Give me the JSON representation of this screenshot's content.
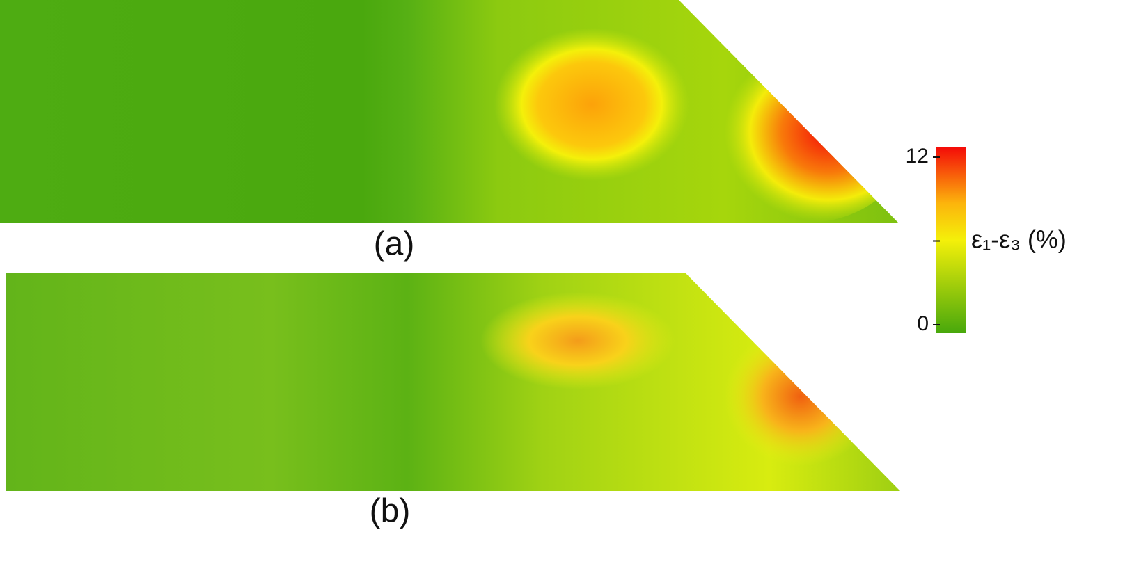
{
  "panels": [
    {
      "label": "(a)"
    },
    {
      "label": "(b)"
    }
  ],
  "colorbar": {
    "label": "ε₁-ε₃ (%)",
    "lim": [
      0,
      12
    ],
    "ticks": [
      0,
      12
    ],
    "minor_ticks": [
      6
    ]
  }
}
